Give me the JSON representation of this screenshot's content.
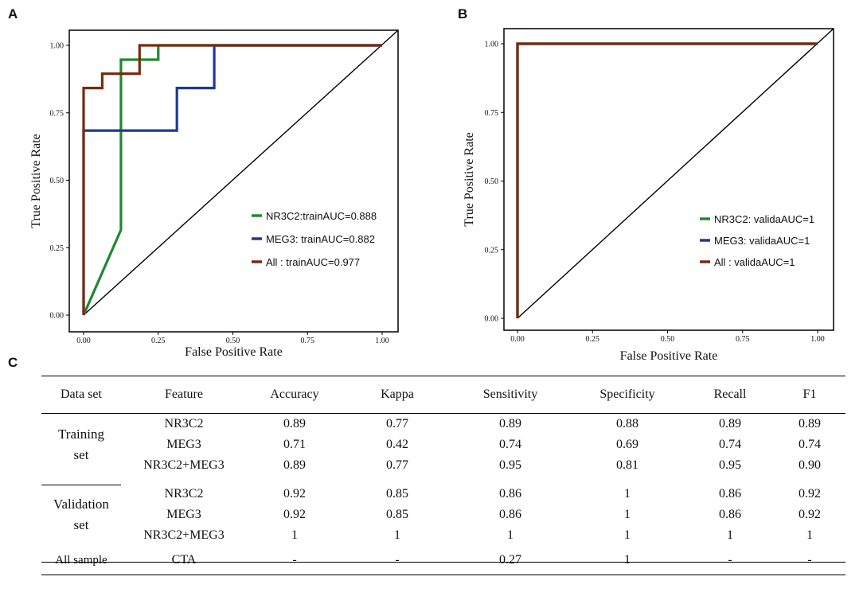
{
  "panels": {
    "a": "A",
    "b": "B",
    "c": "C"
  },
  "chart_data": [
    {
      "type": "line",
      "panel": "A",
      "xlabel": "False Positive Rate",
      "ylabel": "True Positive Rate",
      "xlim": [
        0,
        1
      ],
      "ylim": [
        0,
        1
      ],
      "xticks": [
        "0.00",
        "0.25",
        "0.50",
        "0.75",
        "1.00"
      ],
      "yticks": [
        "0.00",
        "0.25",
        "0.50",
        "0.75",
        "1.00"
      ],
      "legend_position": "bottom-right",
      "series": [
        {
          "name": "NR3C2",
          "label": "NR3C2:trainAUC=0.888",
          "color": "#1e8a2e",
          "x": [
            0,
            0.125,
            0.125,
            0.25,
            0.25,
            1.0
          ],
          "y": [
            0,
            0.316,
            0.947,
            0.947,
            1.0,
            1.0
          ]
        },
        {
          "name": "MEG3",
          "label": "MEG3: trainAUC=0.882",
          "color": "#1f3a93",
          "x": [
            0,
            0,
            0.3125,
            0.3125,
            0.4375,
            0.4375,
            1.0
          ],
          "y": [
            0,
            0.684,
            0.684,
            0.842,
            0.842,
            1.0,
            1.0
          ]
        },
        {
          "name": "All",
          "label": "All    :  trainAUC=0.977",
          "color": "#7a2a10",
          "x": [
            0,
            0,
            0.0625,
            0.0625,
            0.1875,
            0.1875,
            1.0
          ],
          "y": [
            0,
            0.842,
            0.842,
            0.895,
            0.895,
            1.0,
            1.0
          ]
        }
      ]
    },
    {
      "type": "line",
      "panel": "B",
      "xlabel": "False Positive Rate",
      "ylabel": "True Positive Rate",
      "xlim": [
        0,
        1
      ],
      "ylim": [
        0,
        1
      ],
      "xticks": [
        "0.00",
        "0.25",
        "0.50",
        "0.75",
        "1.00"
      ],
      "yticks": [
        "0.00",
        "0.25",
        "0.50",
        "0.75",
        "1.00"
      ],
      "legend_position": "bottom-right",
      "series": [
        {
          "name": "NR3C2",
          "label": "NR3C2: validaAUC=1",
          "color": "#1e8a2e",
          "x": [
            0,
            0,
            1.0
          ],
          "y": [
            0,
            1.0,
            1.0
          ]
        },
        {
          "name": "MEG3",
          "label": "MEG3:  validaAUC=1",
          "color": "#1f3a93",
          "x": [
            0,
            0,
            1.0
          ],
          "y": [
            0,
            1.0,
            1.0
          ]
        },
        {
          "name": "All",
          "label": "All     :  validaAUC=1",
          "color": "#7a2a10",
          "x": [
            0,
            0,
            1.0
          ],
          "y": [
            0,
            1.0,
            1.0
          ]
        }
      ]
    }
  ],
  "table": {
    "headers": [
      "Data set",
      "Feature",
      "Accuracy",
      "Kappa",
      "Sensitivity",
      "Specificity",
      "Recall",
      "F1"
    ],
    "training_label_1": "Training",
    "training_label_2": "set",
    "validation_label_1": "Validation",
    "validation_label_2": "set",
    "all_label": "All sample",
    "training_rows": [
      [
        "NR3C2",
        "0.89",
        "0.77",
        "0.89",
        "0.88",
        "0.89",
        "0.89"
      ],
      [
        "MEG3",
        "0.71",
        "0.42",
        "0.74",
        "0.69",
        "0.74",
        "0.74"
      ],
      [
        "NR3C2+MEG3",
        "0.89",
        "0.77",
        "0.95",
        "0.81",
        "0.95",
        "0.90"
      ]
    ],
    "validation_rows": [
      [
        "NR3C2",
        "0.92",
        "0.85",
        "0.86",
        "1",
        "0.86",
        "0.92"
      ],
      [
        "MEG3",
        "0.92",
        "0.85",
        "0.86",
        "1",
        "0.86",
        "0.92"
      ],
      [
        "NR3C2+MEG3",
        "1",
        "1",
        "1",
        "1",
        "1",
        "1"
      ]
    ],
    "all_row": [
      "CTA",
      "-",
      "-",
      "0.27",
      "1",
      "-",
      "-"
    ]
  }
}
